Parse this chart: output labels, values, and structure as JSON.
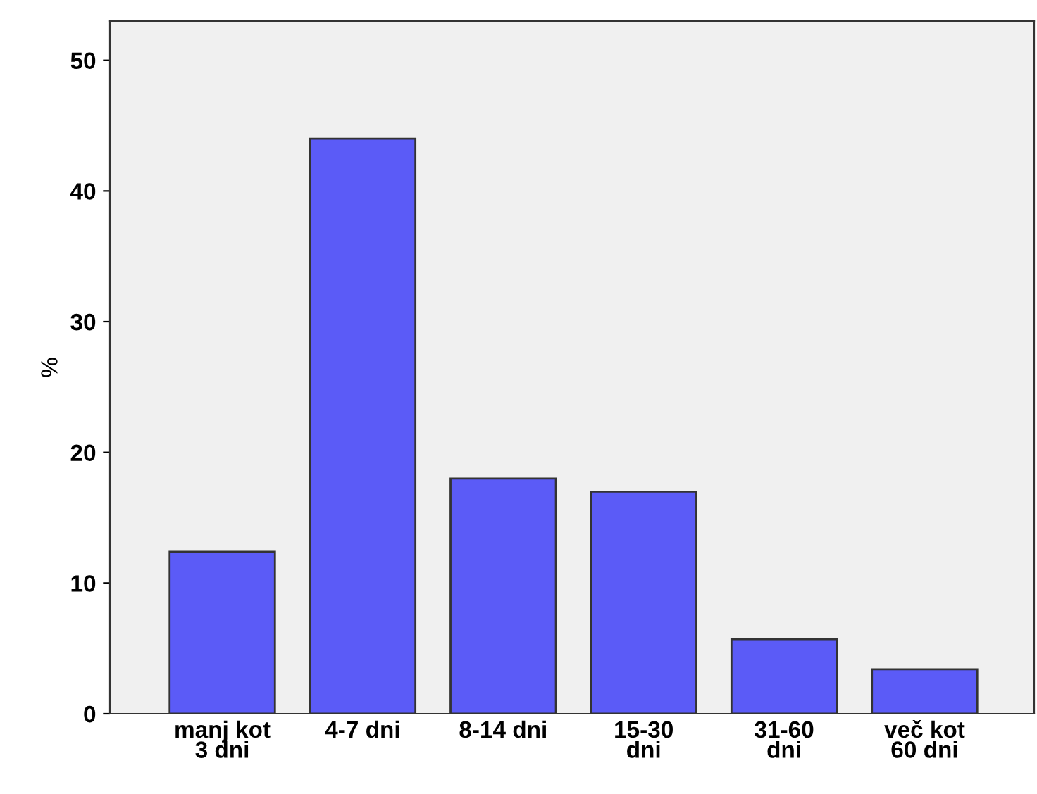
{
  "chart_data": {
    "type": "bar",
    "ylabel": "%",
    "categories": [
      "manj kot\n3 dni",
      "4-7 dni",
      "8-14 dni",
      "15-30\ndni",
      "31-60\ndni",
      "več kot\n60 dni"
    ],
    "values": [
      12.4,
      44.0,
      18.0,
      17.0,
      5.7,
      3.4
    ],
    "color": "#5b5bf7",
    "ylim": [
      0,
      53
    ],
    "yticks": [
      0,
      10,
      20,
      30,
      40,
      50
    ],
    "grid": false,
    "legend": false
  }
}
